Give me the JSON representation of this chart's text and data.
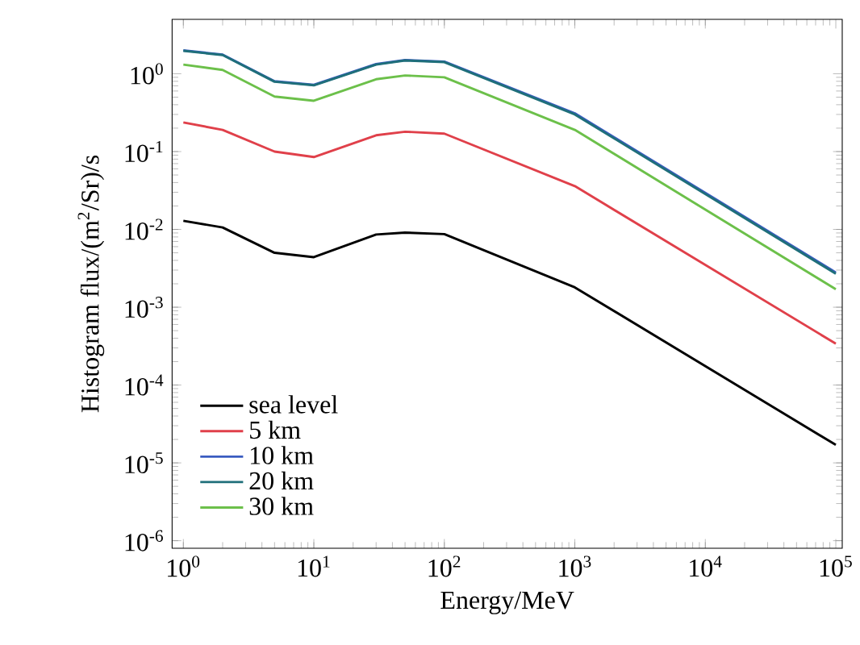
{
  "chart_data": {
    "type": "line",
    "xlabel": "Energy/MeV",
    "ylabel": "Histogram flux/(m$^{2}$/Sr)/s",
    "log": "xy",
    "grid": false,
    "legend": "bottom left",
    "marker": "none",
    "line_style": "solid",
    "x": [
      1,
      2,
      5,
      10,
      30,
      50,
      100,
      1000,
      100000
    ],
    "xlim": [
      0.82,
      112000
    ],
    "ylim": [
      8e-07,
      5
    ],
    "xticks": [
      {
        "value": 1,
        "label": "10$^{0}$"
      },
      {
        "value": 10,
        "label": "10$^{1}$"
      },
      {
        "value": 100,
        "label": "10$^{2}$"
      },
      {
        "value": 1000,
        "label": "10$^{3}$"
      },
      {
        "value": 10000,
        "label": "10$^{4}$"
      },
      {
        "value": 100000,
        "label": "10$^{5}$"
      }
    ],
    "yticks": [
      {
        "value": 1e-06,
        "label": "10$^{-6}$"
      },
      {
        "value": 1e-05,
        "label": "10$^{-5}$"
      },
      {
        "value": 0.0001,
        "label": "10$^{-4}$"
      },
      {
        "value": 0.001,
        "label": "10$^{-3}$"
      },
      {
        "value": 0.01,
        "label": "10$^{-2}$"
      },
      {
        "value": 0.1,
        "label": "10$^{-1}$"
      },
      {
        "value": 1,
        "label": "10$^{0}$"
      }
    ],
    "series": [
      {
        "name": "sea level",
        "color": "#000000",
        "values": [
          0.0129,
          0.0106,
          0.005,
          0.0044,
          0.0086,
          0.0091,
          0.0087,
          0.0018,
          1.7e-05
        ]
      },
      {
        "name": "5 km",
        "color": "#e0404a",
        "values": [
          0.237,
          0.19,
          0.1,
          0.085,
          0.162,
          0.18,
          0.17,
          0.036,
          0.00034
        ]
      },
      {
        "name": "10 km",
        "color": "#3a5cc0",
        "values": [
          2.0,
          1.76,
          0.8,
          0.72,
          1.33,
          1.5,
          1.43,
          0.31,
          0.0028
        ]
      },
      {
        "name": "20 km",
        "color": "#1f6f7a",
        "values": [
          1.97,
          1.74,
          0.79,
          0.71,
          1.31,
          1.48,
          1.41,
          0.3,
          0.0027
        ]
      },
      {
        "name": "30 km",
        "color": "#6cc04a",
        "values": [
          1.31,
          1.12,
          0.51,
          0.45,
          0.85,
          0.95,
          0.9,
          0.19,
          0.0017
        ]
      }
    ]
  }
}
